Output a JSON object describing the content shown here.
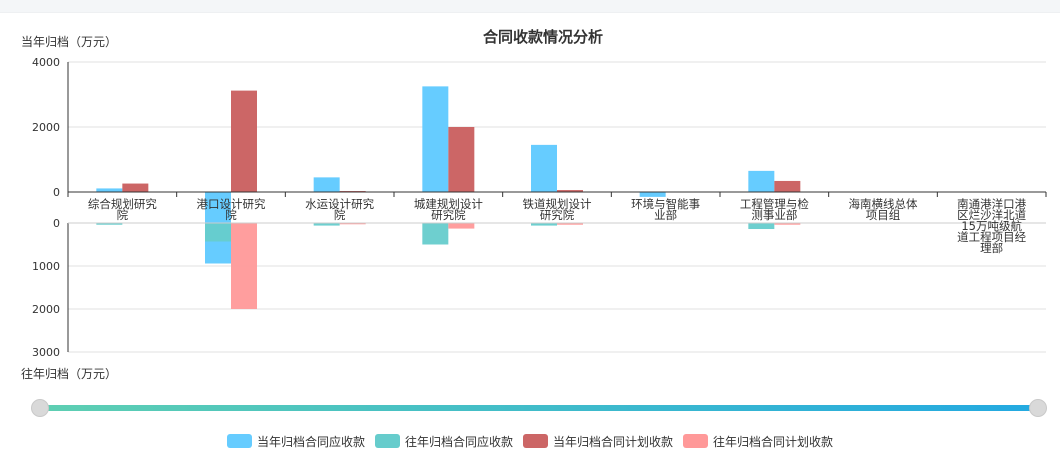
{
  "chart_data": {
    "type": "bar",
    "title": "合同收款情况分析",
    "top_ylabel": "当年归档（万元）",
    "bottom_ylabel": "往年归档（万元）",
    "categories": [
      "综合规划研究院",
      "港口设计研究院",
      "水运设计研究院",
      "城建规划设计研究院",
      "铁道规划设计研究院",
      "环境与智能事业部",
      "工程管理与检测事业部",
      "海南横线总体项目组",
      "南通港洋口港区烂沙洋北道15万吨级航道工程项目经理部"
    ],
    "top_ylim": [
      0,
      4000
    ],
    "top_ticks": [
      "0",
      "2000",
      "4000"
    ],
    "bottom_ylim": [
      0,
      3000
    ],
    "bottom_ticks": [
      "0",
      "1000",
      "2000",
      "3000"
    ],
    "series": [
      {
        "name": "当年归档合同应收款",
        "panel": "top",
        "color": "#66ccff",
        "values": [
          110,
          -2200,
          450,
          3250,
          1450,
          -150,
          650,
          0,
          0
        ]
      },
      {
        "name": "往年归档合同应收款",
        "panel": "bottom",
        "color": "#66cccc",
        "values": [
          40,
          430,
          60,
          500,
          60,
          0,
          140,
          0,
          0
        ]
      },
      {
        "name": "当年归档合同计划收款",
        "panel": "top",
        "color": "#cc6666",
        "values": [
          260,
          3120,
          30,
          2000,
          60,
          0,
          340,
          0,
          0
        ]
      },
      {
        "name": "往年归档合同计划收款",
        "panel": "bottom",
        "color": "#ff9999",
        "values": [
          10,
          2000,
          30,
          130,
          40,
          0,
          40,
          0,
          0
        ]
      }
    ],
    "legend_position": "bottom-center",
    "grid": true
  }
}
